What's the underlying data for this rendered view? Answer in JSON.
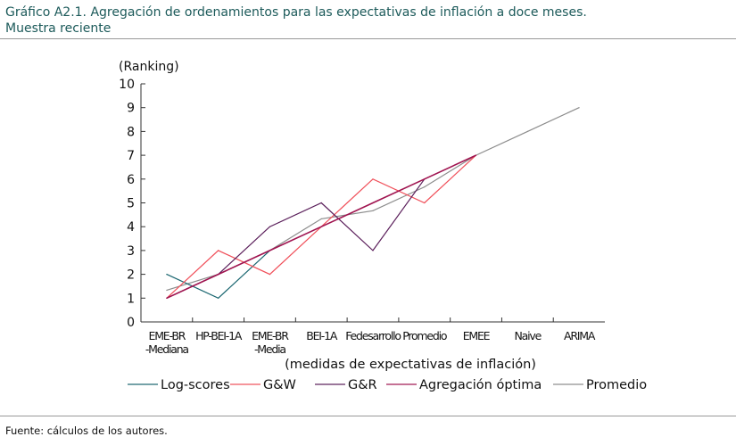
{
  "title_line1": "Gráfico A2.1. Agregación de ordenamientos para las expectativas de inflación a doce meses.",
  "title_line2": "Muestra reciente",
  "source": "Fuente: cálculos de los autores.",
  "chart_data": {
    "type": "line",
    "ylabel": "(Ranking)",
    "xlabel": "(medidas de expectativas de inflación)",
    "ylim": [
      0,
      10
    ],
    "yticks": [
      0,
      1,
      2,
      3,
      4,
      5,
      6,
      7,
      8,
      9,
      10
    ],
    "categories": [
      [
        "EME-BR",
        "-Mediana"
      ],
      [
        "HP-BEI-1A"
      ],
      [
        "EME-BR",
        "-Media"
      ],
      [
        "BEI-1A"
      ],
      [
        "Fedesarrollo"
      ],
      [
        "Promedio"
      ],
      [
        "EMEE"
      ],
      [
        "Naive"
      ],
      [
        "ARIMA"
      ]
    ],
    "legend_position": "bottom",
    "series": [
      {
        "name": "Log-scores",
        "color": "#1a6670",
        "values": [
          2,
          1,
          3,
          null,
          null,
          null,
          null,
          null,
          null
        ]
      },
      {
        "name": "G&W",
        "color": "#f0505a",
        "values": [
          1,
          3,
          2,
          4,
          6,
          5,
          7,
          null,
          null
        ]
      },
      {
        "name": "G&R",
        "color": "#5a1e5a",
        "values": [
          1,
          2,
          4,
          5,
          3,
          6,
          null,
          null,
          null
        ]
      },
      {
        "name": "Agregación óptima",
        "color": "#a01450",
        "values": [
          1,
          2,
          3,
          4,
          5,
          6,
          7,
          null,
          null
        ]
      },
      {
        "name": "Promedio",
        "color": "#8c8c8c",
        "values": [
          1.33,
          2,
          3,
          4.33,
          4.67,
          5.67,
          7,
          8,
          9
        ]
      }
    ]
  }
}
